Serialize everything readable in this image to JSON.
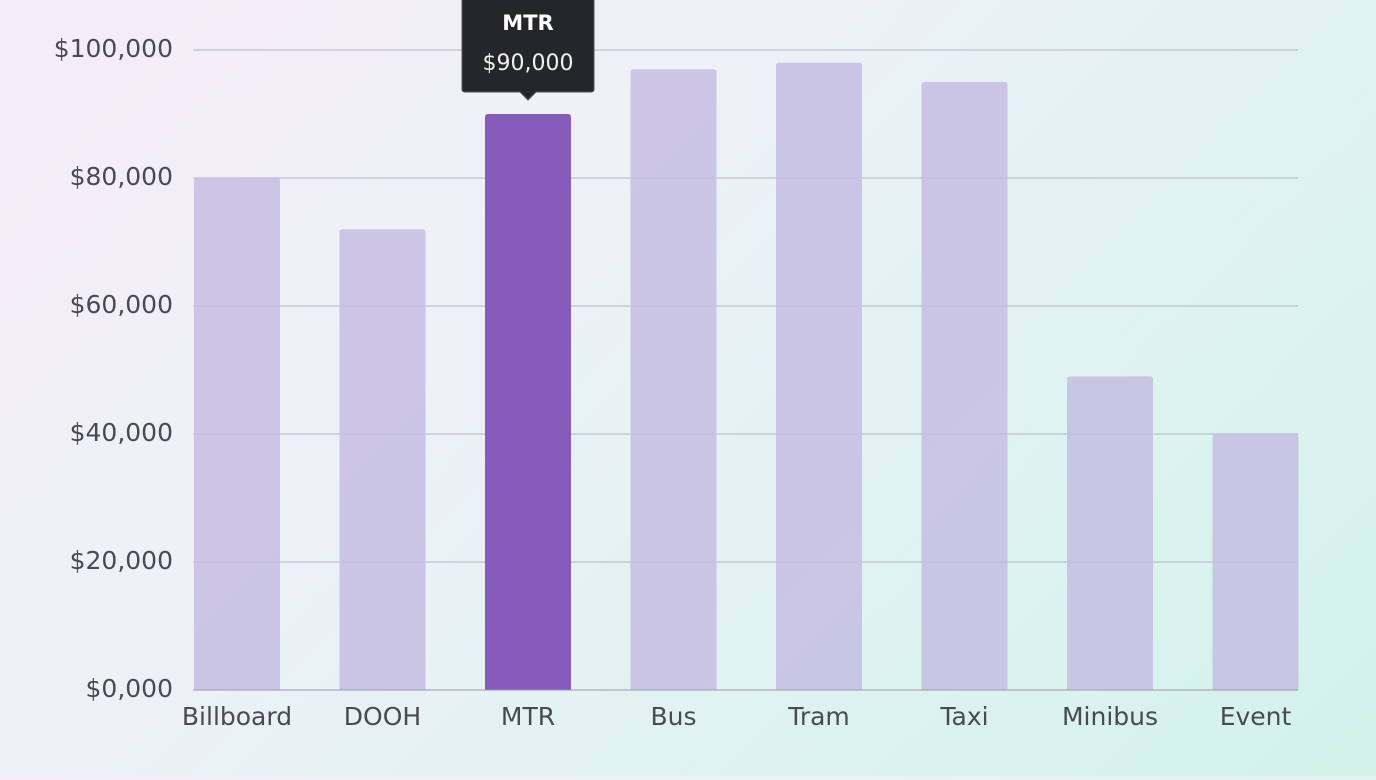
{
  "chart_data": {
    "type": "bar",
    "categories": [
      "Billboard",
      "DOOH",
      "MTR",
      "Bus",
      "Tram",
      "Taxi",
      "Minibus",
      "Event"
    ],
    "values": [
      80000,
      72000,
      90000,
      97000,
      98000,
      95000,
      49000,
      40000
    ],
    "color": "#c6bde2",
    "highlight_color": "#875bbb",
    "ylim": [
      0,
      100000
    ],
    "yticks": [
      {
        "value": 0,
        "label": "$0,000"
      },
      {
        "value": 20000,
        "label": "$20,000"
      },
      {
        "value": 40000,
        "label": "$40,000"
      },
      {
        "value": 60000,
        "label": "$60,000"
      },
      {
        "value": 80000,
        "label": "$80,000"
      },
      {
        "value": 100000,
        "label": "$100,000"
      }
    ],
    "grid": true,
    "tooltip": {
      "category": "MTR",
      "value_label": "$90,000"
    }
  }
}
